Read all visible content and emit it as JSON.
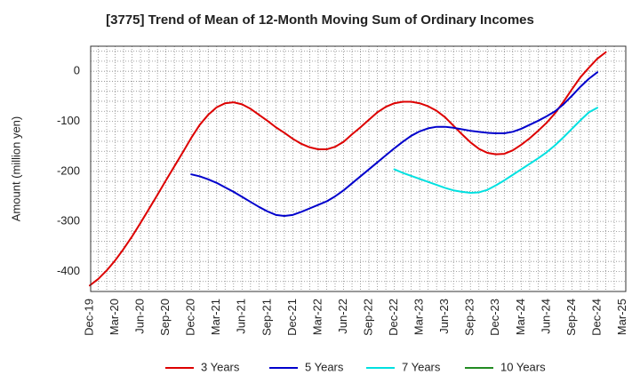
{
  "chart_data": {
    "type": "line",
    "title": "[3775]  Trend of Mean of 12-Month Moving Sum of Ordinary Incomes",
    "xlabel": "",
    "ylabel": "Amount (million yen)",
    "ylim": [
      -440,
      50
    ],
    "yticks": [
      0,
      -100,
      -200,
      -300,
      -400
    ],
    "xticks": [
      "Dec-19",
      "Mar-20",
      "Jun-20",
      "Sep-20",
      "Dec-20",
      "Mar-21",
      "Jun-21",
      "Sep-21",
      "Dec-21",
      "Mar-22",
      "Jun-22",
      "Sep-22",
      "Dec-22",
      "Mar-23",
      "Jun-23",
      "Sep-23",
      "Dec-23",
      "Mar-24",
      "Jun-24",
      "Sep-24",
      "Dec-24",
      "Mar-25"
    ],
    "grid": true,
    "legend_position": "bottom",
    "series": [
      {
        "name": "3 Years",
        "color": "#dd0000",
        "start_index": 0,
        "values": [
          -428,
          -415,
          -398,
          -378,
          -355,
          -330,
          -303,
          -275,
          -247,
          -218,
          -190,
          -162,
          -133,
          -107,
          -87,
          -72,
          -64,
          -62,
          -66,
          -75,
          -87,
          -99,
          -112,
          -123,
          -135,
          -145,
          -152,
          -156,
          -156,
          -151,
          -141,
          -126,
          -112,
          -97,
          -82,
          -71,
          -64,
          -61,
          -61,
          -64,
          -70,
          -79,
          -92,
          -109,
          -126,
          -142,
          -155,
          -163,
          -166,
          -165,
          -158,
          -147,
          -134,
          -119,
          -103,
          -84,
          -61,
          -36,
          -12,
          7,
          25,
          38
        ]
      },
      {
        "name": "5 Years",
        "color": "#0000cc",
        "start_index": 12,
        "values": [
          -206,
          -210,
          -216,
          -223,
          -232,
          -241,
          -251,
          -261,
          -271,
          -280,
          -287,
          -289,
          -287,
          -281,
          -274,
          -267,
          -260,
          -250,
          -238,
          -224,
          -210,
          -196,
          -182,
          -168,
          -154,
          -141,
          -129,
          -120,
          -114,
          -111,
          -111,
          -113,
          -116,
          -119,
          -121,
          -123,
          -124,
          -124,
          -121,
          -115,
          -107,
          -99,
          -90,
          -80,
          -66,
          -49,
          -31,
          -15,
          -2
        ]
      },
      {
        "name": "7 Years",
        "color": "#00e0e0",
        "start_index": 36,
        "values": [
          -196,
          -203,
          -209,
          -215,
          -221,
          -227,
          -233,
          -238,
          -241,
          -243,
          -242,
          -237,
          -228,
          -218,
          -207,
          -196,
          -185,
          -174,
          -162,
          -148,
          -132,
          -115,
          -98,
          -82,
          -73
        ]
      },
      {
        "name": "10 Years",
        "color": "#228b22",
        "start_index": 0,
        "values": []
      }
    ]
  }
}
